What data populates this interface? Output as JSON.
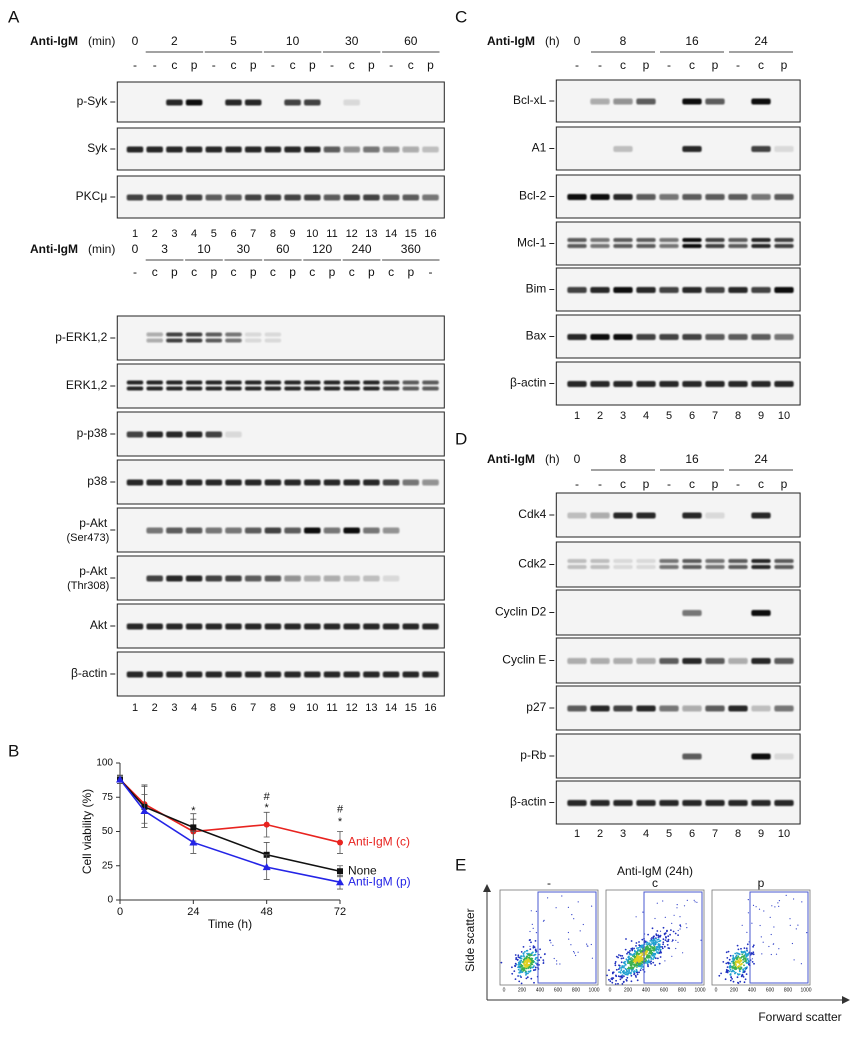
{
  "panels": {
    "A1": {
      "letter": "A",
      "header": {
        "agent": "Anti-IgM",
        "unit": "(min)"
      },
      "groups": [
        "0",
        "2",
        "5",
        "10",
        "30",
        "60"
      ],
      "conditions": [
        "-",
        "-",
        "c",
        "p",
        "-",
        "c",
        "p",
        "-",
        "c",
        "p",
        "-",
        "c",
        "p",
        "-",
        "c",
        "p"
      ],
      "rows": [
        {
          "label": "p-Syk"
        },
        {
          "label": "Syk"
        },
        {
          "label": "PKCμ"
        }
      ],
      "lanes": [
        1,
        2,
        3,
        4,
        5,
        6,
        7,
        8,
        9,
        10,
        11,
        12,
        13,
        14,
        15,
        16
      ]
    },
    "A2": {
      "header": {
        "agent": "Anti-IgM",
        "unit": "(min)"
      },
      "groups": [
        "0",
        "3",
        "10",
        "30",
        "60",
        "120",
        "240",
        "360"
      ],
      "conditions": [
        "-",
        "c",
        "p",
        "c",
        "p",
        "c",
        "p",
        "c",
        "p",
        "c",
        "p",
        "c",
        "p",
        "c",
        "p",
        "-"
      ],
      "rows": [
        {
          "label": "p-ERK1,2"
        },
        {
          "label": "ERK1,2"
        },
        {
          "label": "p-p38"
        },
        {
          "label": "p38"
        },
        {
          "label": "p-Akt",
          "sub": "(Ser473)"
        },
        {
          "label": "p-Akt",
          "sub": "(Thr308)"
        },
        {
          "label": "Akt"
        },
        {
          "label": "β-actin"
        }
      ],
      "lanes": [
        1,
        2,
        3,
        4,
        5,
        6,
        7,
        8,
        9,
        10,
        11,
        12,
        13,
        14,
        15,
        16
      ]
    },
    "C": {
      "letter": "C",
      "header": {
        "agent": "Anti-IgM",
        "unit": "(h)"
      },
      "groups": [
        "0",
        "8",
        "16",
        "24"
      ],
      "conditions": [
        "-",
        "-",
        "c",
        "p",
        "-",
        "c",
        "p",
        "-",
        "c",
        "p"
      ],
      "rows": [
        {
          "label": "Bcl-xL"
        },
        {
          "label": "A1"
        },
        {
          "label": "Bcl-2"
        },
        {
          "label": "Mcl-1"
        },
        {
          "label": "Bim"
        },
        {
          "label": "Bax"
        },
        {
          "label": "β-actin"
        }
      ],
      "lanes": [
        1,
        2,
        3,
        4,
        5,
        6,
        7,
        8,
        9,
        10
      ]
    },
    "D": {
      "letter": "D",
      "header": {
        "agent": "Anti-IgM",
        "unit": "(h)"
      },
      "groups": [
        "0",
        "8",
        "16",
        "24"
      ],
      "conditions": [
        "-",
        "-",
        "c",
        "p",
        "-",
        "c",
        "p",
        "-",
        "c",
        "p"
      ],
      "rows": [
        {
          "label": "Cdk4"
        },
        {
          "label": "Cdk2"
        },
        {
          "label": "Cyclin D2"
        },
        {
          "label": "Cyclin E"
        },
        {
          "label": "p27"
        },
        {
          "label": "p-Rb"
        },
        {
          "label": "β-actin"
        }
      ],
      "lanes": [
        1,
        2,
        3,
        4,
        5,
        6,
        7,
        8,
        9,
        10
      ]
    },
    "E": {
      "letter": "E",
      "title": "Anti-IgM (24h)",
      "plots": [
        "-",
        "c",
        "p"
      ],
      "ylabel": "Side scatter",
      "xlabel": "Forward scatter",
      "ticks": [
        0,
        200,
        400,
        600,
        800,
        1000
      ]
    }
  },
  "chart_data": {
    "type": "line",
    "letter": "B",
    "xlabel": "Time (h)",
    "ylabel": "Cell viability (%)",
    "x": [
      0,
      8,
      24,
      48,
      72
    ],
    "xlim": [
      0,
      72
    ],
    "xticks": [
      0,
      24,
      48,
      72
    ],
    "ylim": [
      0,
      100
    ],
    "yticks": [
      0,
      25,
      50,
      75,
      100
    ],
    "series": [
      {
        "name": "Anti-IgM (c)",
        "color": "#e8231f",
        "marker": "circle",
        "values": [
          88,
          70,
          50,
          55,
          42
        ],
        "errors": [
          3,
          14,
          9,
          9,
          8
        ]
      },
      {
        "name": "None",
        "color": "#111111",
        "marker": "square",
        "values": [
          88,
          68,
          53,
          33,
          21
        ],
        "errors": [
          3,
          15,
          10,
          9,
          4
        ]
      },
      {
        "name": "Anti-IgM (p)",
        "color": "#2424e6",
        "marker": "triangle",
        "values": [
          88,
          65,
          42,
          24,
          13
        ],
        "errors": [
          3,
          12,
          8,
          9,
          5
        ]
      }
    ],
    "annotations": [
      {
        "x": 24,
        "y": 65,
        "text": "*"
      },
      {
        "x": 48,
        "y": 67,
        "text": "*"
      },
      {
        "x": 48,
        "y": 75,
        "text": "#"
      },
      {
        "x": 72,
        "y": 57,
        "text": "*"
      },
      {
        "x": 72,
        "y": 66,
        "text": "#"
      }
    ]
  }
}
